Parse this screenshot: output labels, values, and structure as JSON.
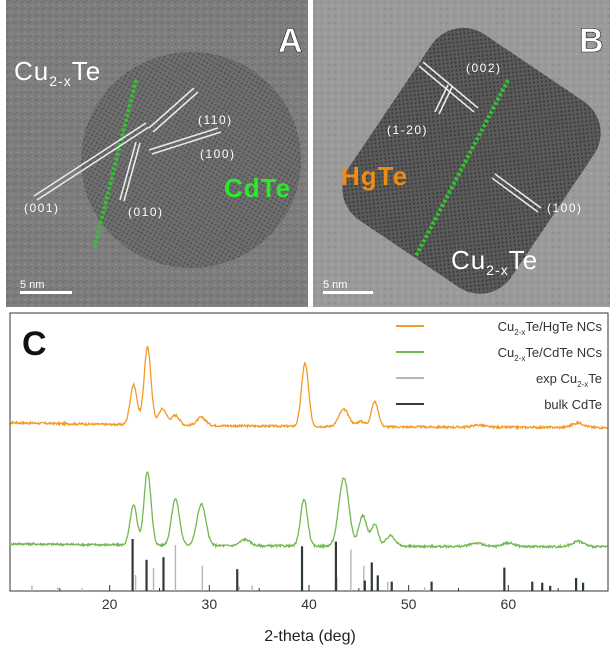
{
  "panels": {
    "a": {
      "letter": "A",
      "material_left_main": "Cu",
      "material_left_sub": "2-x",
      "material_left_end": "Te",
      "material_right": "CdTe",
      "planes": [
        "(110)",
        "(100)",
        "(001)",
        "(010)"
      ],
      "scale": "5 nm"
    },
    "b": {
      "letter": "B",
      "material_left": "HgTe",
      "material_right_main": "Cu",
      "material_right_sub": "2-x",
      "material_right_end": "Te",
      "planes": [
        "(002)",
        "(1-20)",
        "(100)"
      ],
      "scale": "5 nm"
    },
    "c": {
      "letter": "C"
    }
  },
  "colors": {
    "hgte_trace": "#f39a26",
    "cdte_trace": "#72b84f",
    "exp_ref": "#b5b5b5",
    "bulk_ref": "#2f3a3a",
    "interface": "#33c233",
    "cdte_label": "#2ee82e",
    "hgte_label": "#f08c14"
  },
  "chart_data": {
    "type": "line",
    "title": "",
    "xlabel": "2-theta (deg)",
    "ylabel": "",
    "xlim": [
      10,
      70
    ],
    "x_ticks": [
      20,
      30,
      40,
      50,
      60
    ],
    "legend_position": "top-right",
    "series": [
      {
        "name": "Cu2-xTe/HgTe NCs",
        "name_main": "Cu",
        "name_sub": "2-x",
        "name_end": "Te/HgTe NCs",
        "color": "#f39a26",
        "baseline": 0.5,
        "peaks": [
          [
            22.4,
            2.2,
            0.35
          ],
          [
            23.8,
            4.3,
            0.35
          ],
          [
            25.3,
            0.9,
            0.4
          ],
          [
            26.6,
            0.55,
            0.4
          ],
          [
            29.2,
            0.45,
            0.45
          ],
          [
            39.6,
            3.5,
            0.35
          ],
          [
            43.5,
            0.95,
            0.5
          ],
          [
            46.6,
            1.4,
            0.35
          ],
          [
            45.2,
            0.3,
            0.4
          ],
          [
            57.0,
            0.12,
            0.6
          ],
          [
            67.0,
            0.25,
            0.6
          ]
        ]
      },
      {
        "name": "Cu2-xTe/CdTe NCs",
        "name_main": "Cu",
        "name_sub": "2-x",
        "name_end": "Te/CdTe NCs",
        "color": "#72b84f",
        "baseline": 0.3,
        "peaks": [
          [
            22.4,
            2.2,
            0.35
          ],
          [
            23.8,
            4.1,
            0.35
          ],
          [
            26.6,
            2.6,
            0.4
          ],
          [
            29.2,
            2.3,
            0.45
          ],
          [
            33.6,
            0.35,
            0.5
          ],
          [
            39.5,
            2.6,
            0.35
          ],
          [
            43.5,
            3.8,
            0.5
          ],
          [
            45.4,
            1.7,
            0.4
          ],
          [
            46.6,
            1.2,
            0.35
          ],
          [
            48.2,
            0.6,
            0.45
          ],
          [
            56.8,
            0.2,
            0.6
          ],
          [
            60.0,
            0.2,
            0.6
          ],
          [
            67.0,
            0.3,
            0.6
          ]
        ]
      }
    ],
    "reference_sets": [
      {
        "name": "exp Cu2-xTe",
        "name_main": "exp Cu",
        "name_sub": "2-x",
        "name_end": "Te",
        "color": "#b5b5b5",
        "lines": [
          [
            12.2,
            0.12
          ],
          [
            14.8,
            0.08
          ],
          [
            17.2,
            0.06
          ],
          [
            22.6,
            0.35
          ],
          [
            24.4,
            0.5
          ],
          [
            26.6,
            1.0
          ],
          [
            29.3,
            0.55
          ],
          [
            33.0,
            0.1
          ],
          [
            34.3,
            0.12
          ],
          [
            42.8,
            0.3
          ],
          [
            44.2,
            0.9
          ],
          [
            45.5,
            0.55
          ],
          [
            47.9,
            0.2
          ],
          [
            51.6,
            0.08
          ]
        ]
      },
      {
        "name": "bulk CdTe",
        "color": "#2f3a3a",
        "lines": [
          [
            22.3,
            1.0
          ],
          [
            23.7,
            0.6
          ],
          [
            25.4,
            0.65
          ],
          [
            32.8,
            0.42
          ],
          [
            39.3,
            0.86
          ],
          [
            42.7,
            0.95
          ],
          [
            46.3,
            0.55
          ],
          [
            45.6,
            0.2
          ],
          [
            46.9,
            0.3
          ],
          [
            48.3,
            0.18
          ],
          [
            52.3,
            0.18
          ],
          [
            59.6,
            0.45
          ],
          [
            62.4,
            0.18
          ],
          [
            63.4,
            0.16
          ],
          [
            64.2,
            0.1
          ],
          [
            66.8,
            0.25
          ],
          [
            67.5,
            0.16
          ]
        ]
      }
    ]
  }
}
